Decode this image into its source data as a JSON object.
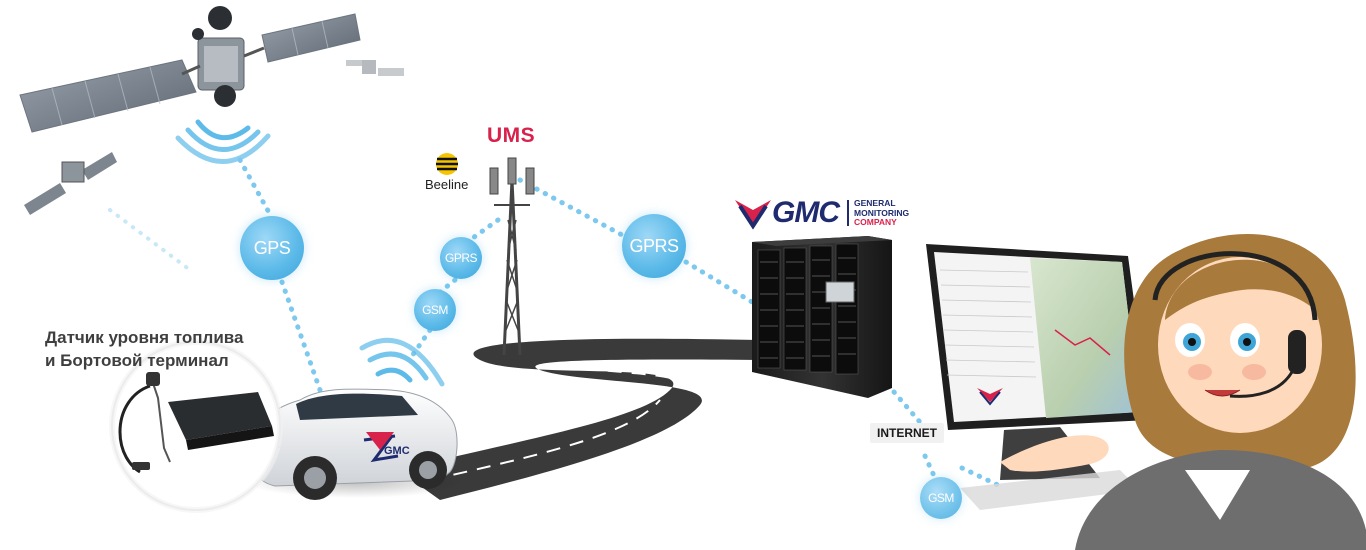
{
  "labels": {
    "sensor_title": "Датчик уровня топлива\nи Бортовой терминал",
    "internet": "INTERNET"
  },
  "bubbles": {
    "gps": "GPS",
    "gprs_main": "GPRS",
    "gprs_small": "GPRS",
    "gsm_small": "GSM",
    "gsm_bottom": "GSM"
  },
  "logos": {
    "ums": "UMS",
    "beeline": "Beeline",
    "gmc": "GMC",
    "gmc_company_line1": "GENERAL",
    "gmc_company_line2": "MONITORING",
    "gmc_company_line3": "COMPANY",
    "car_decal": "GMC"
  },
  "colors": {
    "bubble": "#5ebbe9",
    "dotted_link": "#7cc8ee",
    "signal_wave": "#5ebbe9",
    "road": "#3a3a3a",
    "ums_red": "#d8224b",
    "gmc_navy": "#1e2b6f",
    "gmc_red": "#d8224b"
  }
}
